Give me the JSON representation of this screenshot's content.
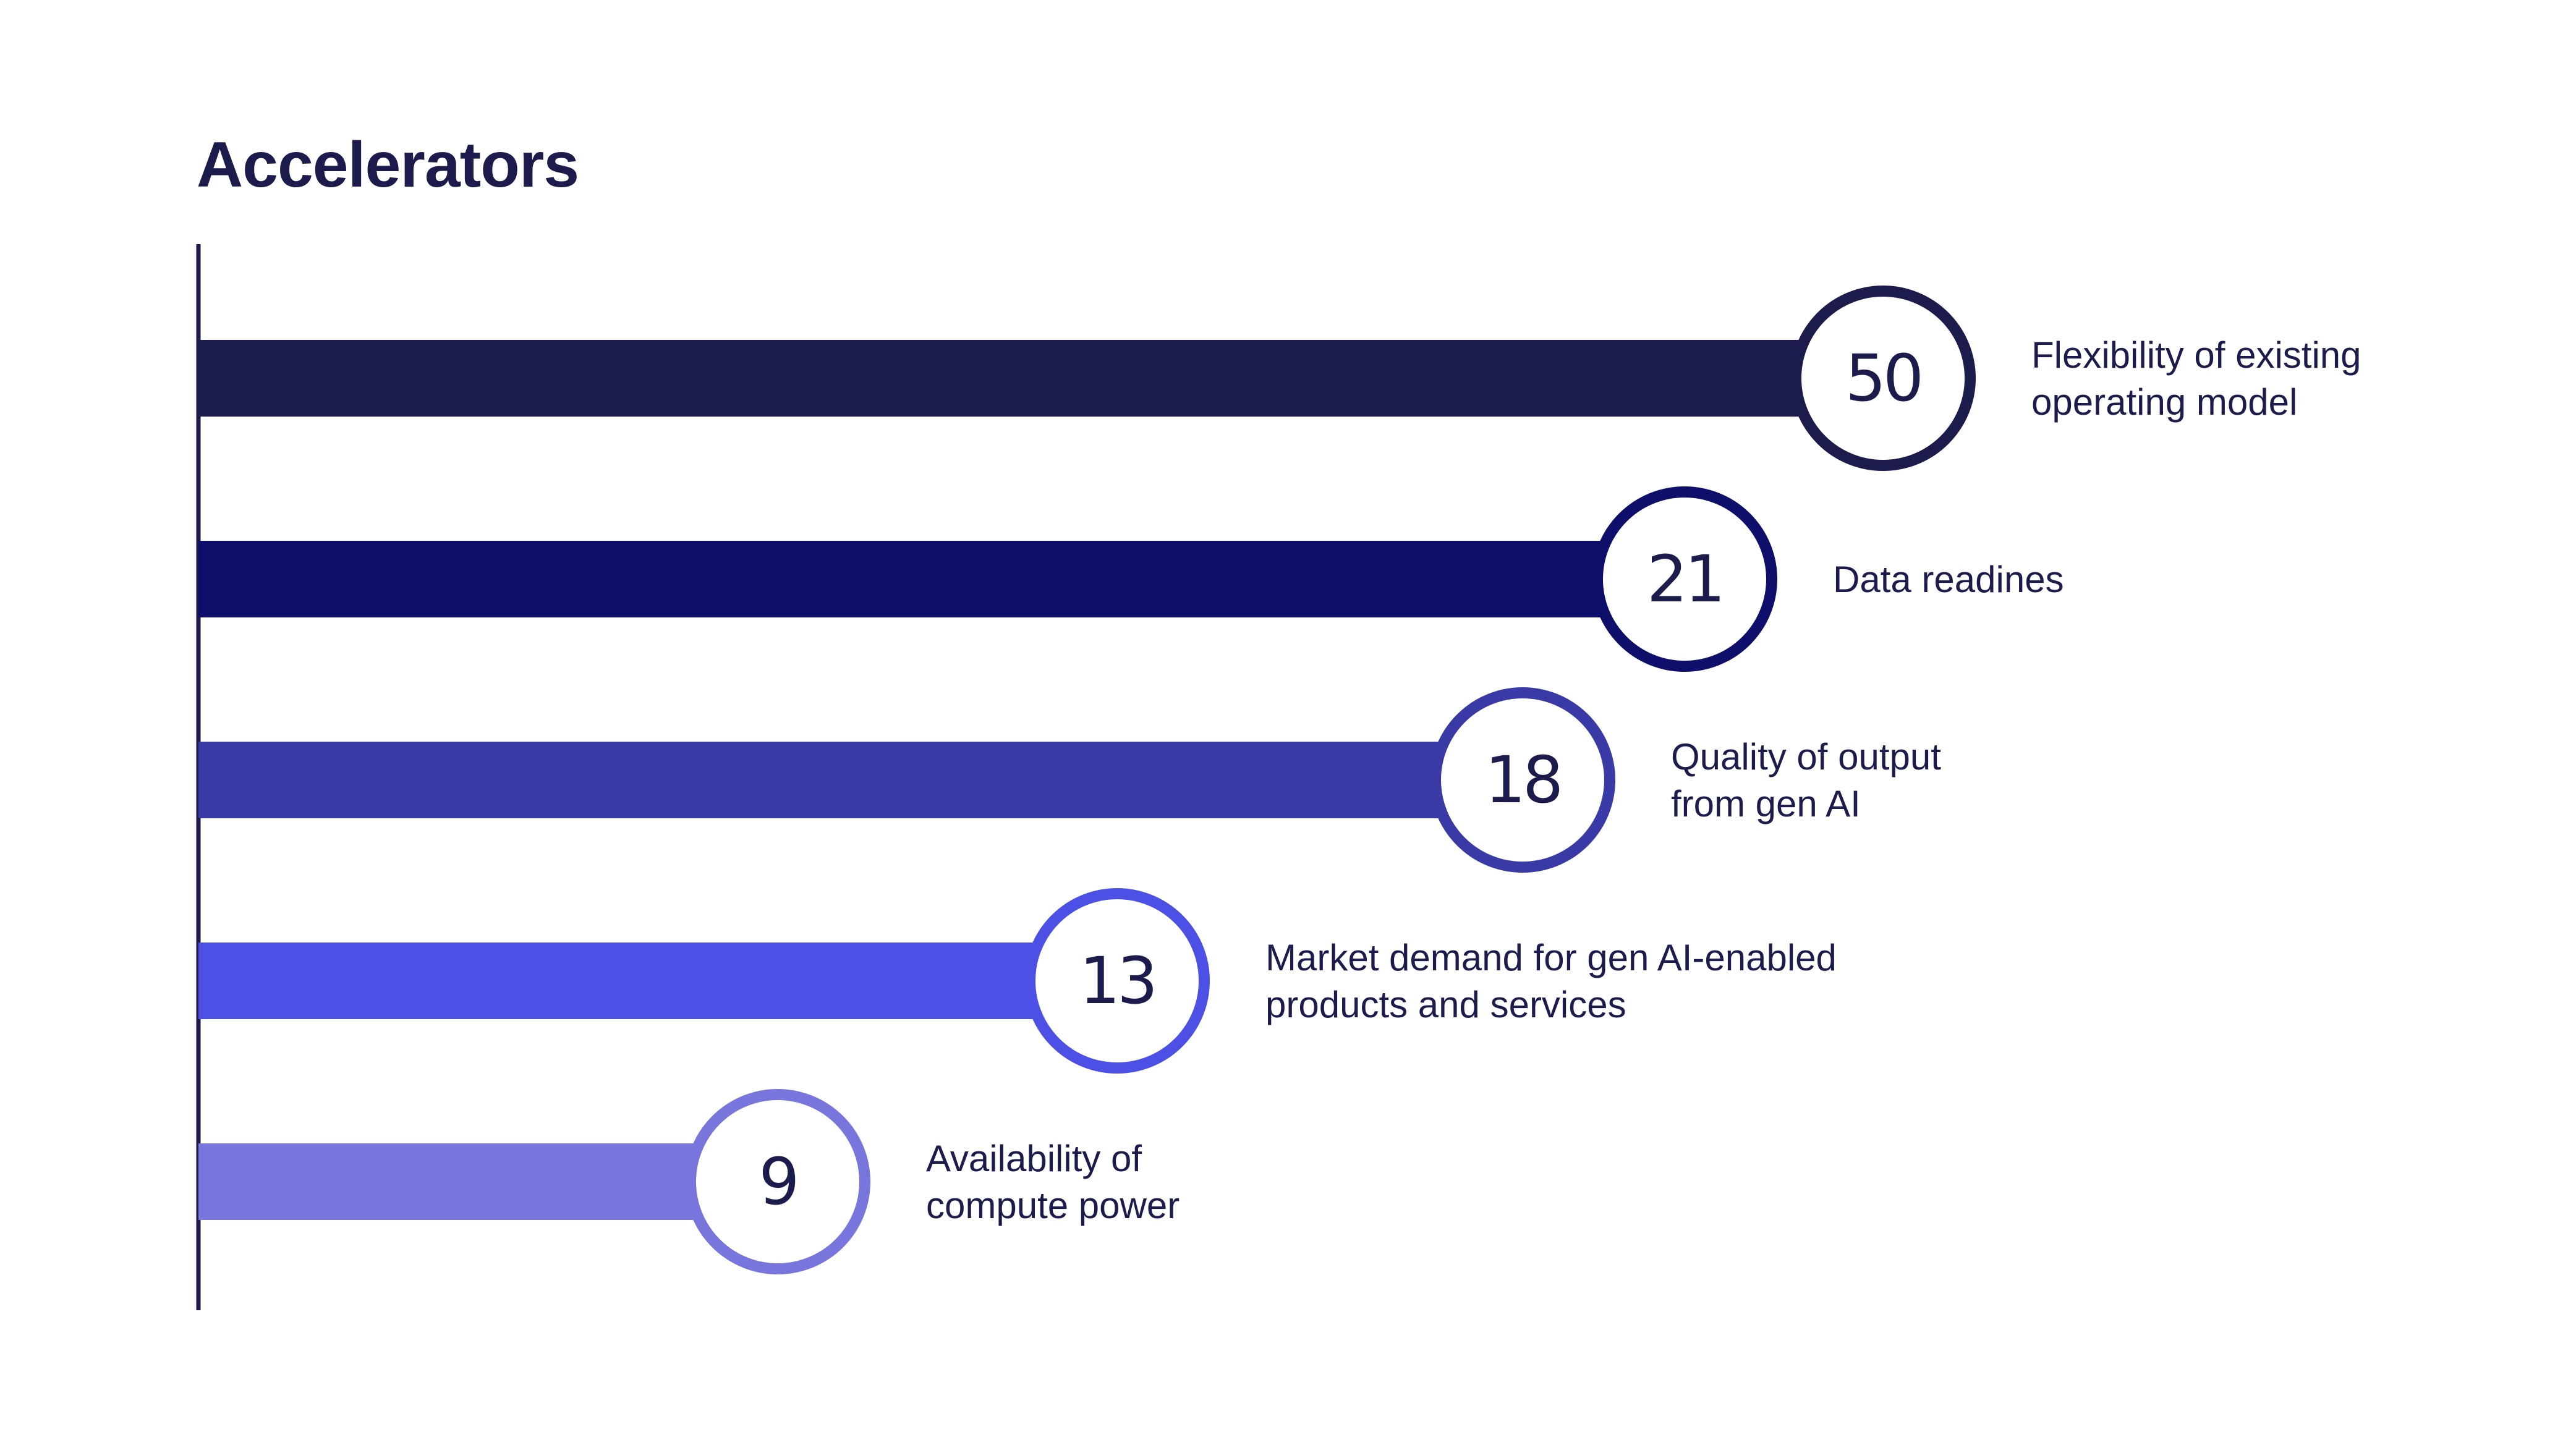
{
  "chart_data": {
    "type": "bar",
    "orientation": "horizontal",
    "title": "Accelerators",
    "categories": [
      "Flexibility of existing operating model",
      "Data readines",
      "Quality of output from gen AI",
      "Market demand for gen AI-enabled products and services",
      "Availability of compute power"
    ],
    "category_lines": [
      [
        "Flexibility of existing",
        "operating model"
      ],
      [
        "Data readines"
      ],
      [
        "Quality of output",
        "from gen AI"
      ],
      [
        "Market demand for gen AI-enabled",
        "products and services"
      ],
      [
        "Availability of",
        "compute power"
      ]
    ],
    "values": [
      50,
      21,
      18,
      13,
      9
    ],
    "value_labels": [
      "50",
      "21",
      "18",
      "13",
      "9"
    ],
    "colors": [
      "#1b1c4c",
      "#0e0f6a",
      "#3a3aa6",
      "#4c50e4",
      "#7876dc"
    ],
    "text_color": "#1b1c4c",
    "axis_color": "#1b1c4c",
    "grid": false,
    "legend": false
  }
}
